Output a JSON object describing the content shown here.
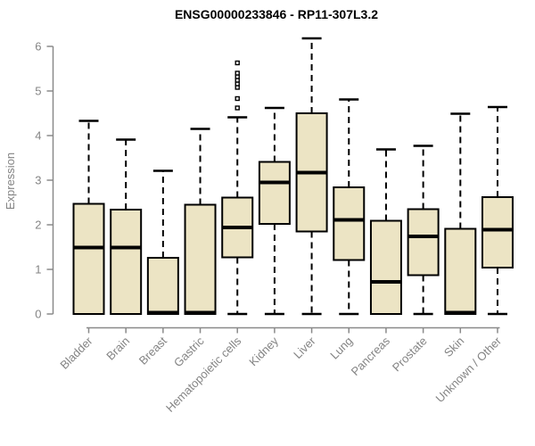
{
  "title": "ENSG00000233846 - RP11-307L3.2",
  "y_axis_label": "Expression",
  "colors": {
    "box_fill": "#ECE4C4",
    "box_border": "#000000",
    "median": "#000000",
    "whisker": "#000000",
    "axis": "#8A8A8A",
    "axis_text": "#848484",
    "title_text": "#000000",
    "background": "#FFFFFF"
  },
  "chart_data": {
    "type": "boxplot",
    "title": "ENSG00000233846 - RP11-307L3.2",
    "xlabel": "",
    "ylabel": "Expression",
    "ylim": [
      0,
      6
    ],
    "yticks": [
      0,
      1,
      2,
      3,
      4,
      5,
      6
    ],
    "grid": false,
    "legend": "none",
    "categories": [
      "Bladder",
      "Brain",
      "Breast",
      "Gastric",
      "Hematopoietic cells",
      "Kidney",
      "Liver",
      "Lung",
      "Pancreas",
      "Prostate",
      "Skin",
      "Unknown / Other"
    ],
    "boxes": [
      {
        "category": "Bladder",
        "low": 0,
        "q1": 0,
        "median": 1.49,
        "q3": 2.47,
        "high": 4.33,
        "outliers": []
      },
      {
        "category": "Brain",
        "low": 0,
        "q1": 0,
        "median": 1.49,
        "q3": 2.34,
        "high": 3.91,
        "outliers": []
      },
      {
        "category": "Breast",
        "low": 0,
        "q1": 0,
        "median": 0.03,
        "q3": 1.26,
        "high": 3.21,
        "outliers": []
      },
      {
        "category": "Gastric",
        "low": 0,
        "q1": 0,
        "median": 0.03,
        "q3": 2.45,
        "high": 4.15,
        "outliers": []
      },
      {
        "category": "Hematopoietic cells",
        "low": 0,
        "q1": 1.27,
        "median": 1.94,
        "q3": 2.61,
        "high": 4.41,
        "outliers": [
          4.62,
          4.83,
          5.08,
          5.16,
          5.24,
          5.32,
          5.4,
          5.63
        ]
      },
      {
        "category": "Kidney",
        "low": 0,
        "q1": 2.02,
        "median": 2.95,
        "q3": 3.41,
        "high": 4.62,
        "outliers": []
      },
      {
        "category": "Liver",
        "low": 0,
        "q1": 1.85,
        "median": 3.17,
        "q3": 4.5,
        "high": 6.18,
        "outliers": []
      },
      {
        "category": "Lung",
        "low": 0,
        "q1": 1.21,
        "median": 2.11,
        "q3": 2.84,
        "high": 4.81,
        "outliers": []
      },
      {
        "category": "Pancreas",
        "low": 0,
        "q1": 0,
        "median": 0.72,
        "q3": 2.09,
        "high": 3.69,
        "outliers": []
      },
      {
        "category": "Prostate",
        "low": 0,
        "q1": 0.87,
        "median": 1.74,
        "q3": 2.35,
        "high": 3.77,
        "outliers": []
      },
      {
        "category": "Skin",
        "low": 0,
        "q1": 0,
        "median": 0.03,
        "q3": 1.91,
        "high": 4.49,
        "outliers": []
      },
      {
        "category": "Unknown / Other",
        "low": 0,
        "q1": 1.04,
        "median": 1.89,
        "q3": 2.62,
        "high": 4.64,
        "outliers": []
      }
    ]
  }
}
